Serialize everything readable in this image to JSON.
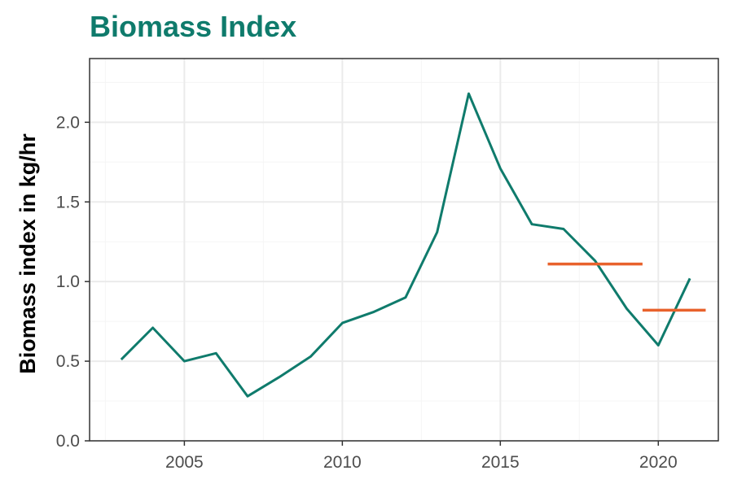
{
  "chart_data": {
    "type": "line",
    "title": "Biomass Index",
    "xlabel": "",
    "ylabel": "Biomass index in kg/hr",
    "xlim": [
      2002.0,
      2021.9
    ],
    "ylim": [
      0,
      2.4
    ],
    "x_ticks": [
      2005,
      2010,
      2015,
      2020
    ],
    "y_ticks": [
      0.0,
      0.5,
      1.0,
      1.5,
      2.0
    ],
    "y_tick_labels": [
      "0.0",
      "0.5",
      "1.0",
      "1.5",
      "2.0"
    ],
    "grid": true,
    "series": [
      {
        "x": [
          2003,
          2004,
          2005,
          2006,
          2007,
          2008,
          2009,
          2010,
          2011,
          2012,
          2013,
          2014,
          2015,
          2016,
          2017,
          2018,
          2019,
          2020,
          2021
        ],
        "values": [
          0.51,
          0.71,
          0.5,
          0.55,
          0.28,
          0.4,
          0.53,
          0.74,
          0.81,
          0.9,
          1.31,
          2.18,
          1.71,
          1.36,
          1.33,
          1.13,
          0.83,
          0.6,
          1.02
        ],
        "color": "#0f7b6c"
      }
    ],
    "reference_segments": [
      {
        "x_start": 2016.5,
        "x_end": 2019.5,
        "value": 1.11,
        "color": "#e8622c"
      },
      {
        "x_start": 2019.5,
        "x_end": 2021.5,
        "value": 0.82,
        "color": "#e8622c"
      }
    ],
    "colors": {
      "line": "#0f7b6c",
      "reference": "#e8622c",
      "title": "#0f7b6c",
      "grid_major": "#ebebeb",
      "grid_minor": "#f5f5f5",
      "panel_border": "#333333"
    }
  }
}
